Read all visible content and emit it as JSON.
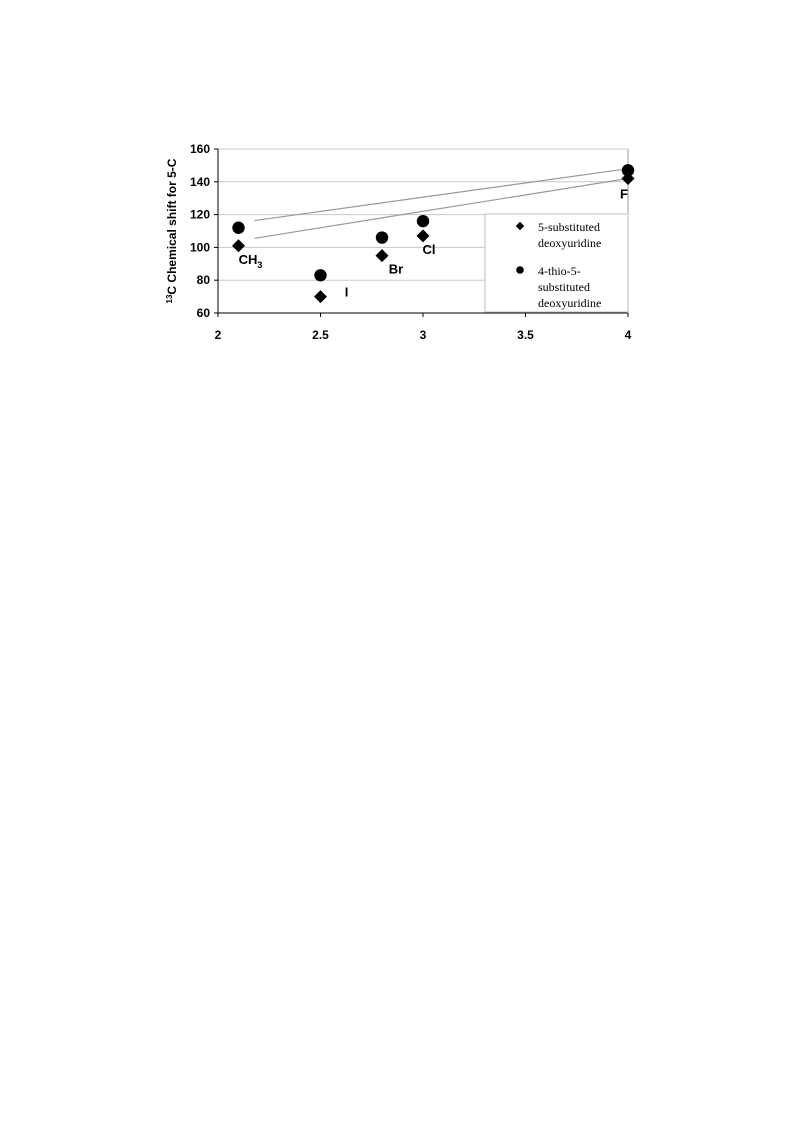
{
  "chart_data": {
    "type": "scatter",
    "ylabel_sup": "13",
    "ylabel_main": "C Chemical shift for 5-C",
    "xlabel": "",
    "xlim": [
      2,
      4
    ],
    "ylim": [
      60,
      160
    ],
    "xticks": [
      "2",
      "2.5",
      "3",
      "3.5",
      "4"
    ],
    "yticks": [
      "60",
      "80",
      "100",
      "120",
      "140",
      "160"
    ],
    "grid": "horizontal",
    "legend_position": "right",
    "series": [
      {
        "name_lines": [
          "5-substituted",
          "deoxyuridine"
        ],
        "marker": "diamond",
        "color": "#000000",
        "points": [
          [
            2.1,
            101
          ],
          [
            2.5,
            70
          ],
          [
            2.8,
            95
          ],
          [
            3.0,
            107
          ],
          [
            4.0,
            142
          ]
        ],
        "trendline": [
          [
            2.1,
            104
          ],
          [
            4.0,
            142
          ]
        ]
      },
      {
        "name_lines": [
          "4-thio-5-",
          "substituted",
          "deoxyuridine"
        ],
        "marker": "circle",
        "color": "#000000",
        "points": [
          [
            2.1,
            112
          ],
          [
            2.5,
            83
          ],
          [
            2.8,
            106
          ],
          [
            3.0,
            116
          ],
          [
            4.0,
            147
          ]
        ],
        "trendline": [
          [
            2.1,
            115
          ],
          [
            4.0,
            148
          ]
        ]
      }
    ],
    "point_labels": [
      {
        "text": "CH",
        "sub": "3",
        "x": 2.1,
        "y": 101
      },
      {
        "text": "I",
        "sub": "",
        "x": 2.5,
        "y": 70
      },
      {
        "text": "Br",
        "sub": "",
        "x": 2.8,
        "y": 95
      },
      {
        "text": "Cl",
        "sub": "",
        "x": 3.0,
        "y": 107
      },
      {
        "text": "F",
        "sub": "",
        "x": 4.0,
        "y": 142
      }
    ]
  }
}
